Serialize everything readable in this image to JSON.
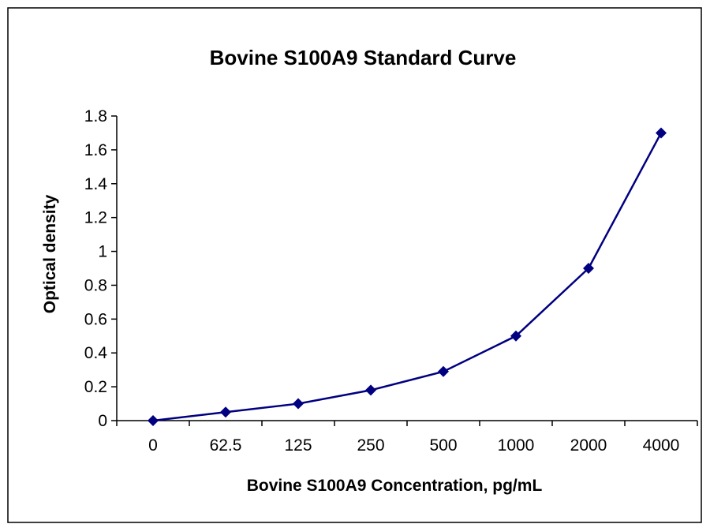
{
  "chart_data": {
    "type": "line",
    "title": "Bovine S100A9 Standard Curve",
    "xlabel": "Bovine S100A9 Concentration, pg/mL",
    "ylabel": "Optical density",
    "categories": [
      "0",
      "62.5",
      "125",
      "250",
      "500",
      "1000",
      "2000",
      "4000"
    ],
    "series": [
      {
        "values": [
          0,
          0.05,
          0.1,
          0.18,
          0.29,
          0.5,
          0.9,
          1.7
        ],
        "color": "#000080"
      }
    ],
    "ylim": [
      0,
      1.8
    ],
    "yticks": [
      "0",
      "0.2",
      "0.4",
      "0.6",
      "0.8",
      "1",
      "1.2",
      "1.4",
      "1.6",
      "1.8"
    ],
    "grid": false,
    "legend": "none"
  }
}
